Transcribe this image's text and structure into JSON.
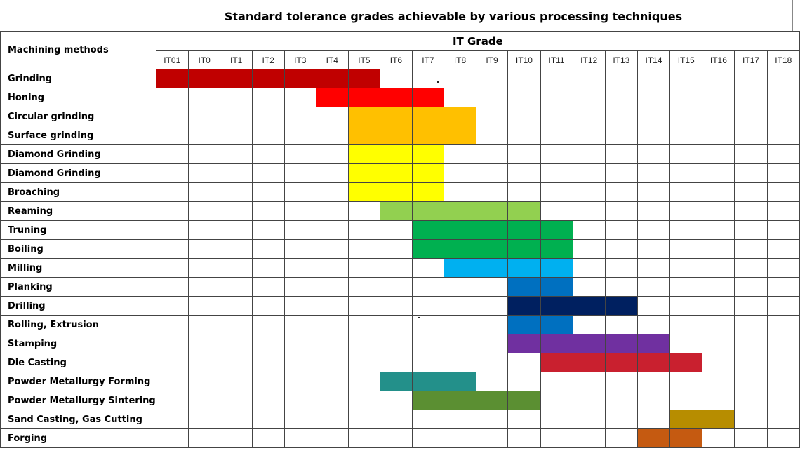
{
  "title": "Standard tolerance grades achievable by various processing techniques",
  "header": {
    "row_label": "Machining methods",
    "group_label": "IT  Grade",
    "grades": [
      "IT01",
      "IT0",
      "IT1",
      "IT2",
      "IT3",
      "IT4",
      "IT5",
      "IT6",
      "IT7",
      "IT8",
      "IT9",
      "IT10",
      "IT11",
      "IT12",
      "IT13",
      "IT14",
      "IT15",
      "IT16",
      "IT17",
      "IT18"
    ]
  },
  "rows": [
    {
      "label": "Grinding",
      "start": 0,
      "end": 6,
      "color": "#C00000"
    },
    {
      "label": "Honing",
      "start": 5,
      "end": 8,
      "color": "#FF0000"
    },
    {
      "label": "Circular grinding",
      "start": 6,
      "end": 9,
      "color": "#FFC000"
    },
    {
      "label": "Surface grinding",
      "start": 6,
      "end": 9,
      "color": "#FFC000"
    },
    {
      "label": "Diamond Grinding",
      "start": 6,
      "end": 8,
      "color": "#FFFF00"
    },
    {
      "label": "Diamond Grinding",
      "start": 6,
      "end": 8,
      "color": "#FFFF00"
    },
    {
      "label": "Broaching",
      "start": 6,
      "end": 8,
      "color": "#FFFF00"
    },
    {
      "label": "Reaming",
      "start": 7,
      "end": 11,
      "color": "#92D050"
    },
    {
      "label": "Truning",
      "start": 8,
      "end": 12,
      "color": "#00B050"
    },
    {
      "label": "Boiling",
      "start": 8,
      "end": 12,
      "color": "#00B050"
    },
    {
      "label": "Milling",
      "start": 9,
      "end": 12,
      "color": "#00B0F0"
    },
    {
      "label": "Planking",
      "start": 11,
      "end": 12,
      "color": "#0070C0"
    },
    {
      "label": "Drilling",
      "start": 11,
      "end": 14,
      "color": "#002060"
    },
    {
      "label": "Rolling, Extrusion",
      "start": 11,
      "end": 12,
      "color": "#0070C0"
    },
    {
      "label": "Stamping",
      "start": 11,
      "end": 15,
      "color": "#7030A0"
    },
    {
      "label": "Die Casting",
      "start": 12,
      "end": 16,
      "color": "#C9202F"
    },
    {
      "label": "Powder Metallurgy Forming",
      "start": 7,
      "end": 9,
      "color": "#23908A"
    },
    {
      "label": "Powder Metallurgy Sintering",
      "start": 8,
      "end": 11,
      "color": "#5B8F32"
    },
    {
      "label": "Sand Casting, Gas Cutting",
      "start": 16,
      "end": 17,
      "color": "#B78D00"
    },
    {
      "label": "Forging",
      "start": 15,
      "end": 16,
      "color": "#C55A11"
    }
  ],
  "chart_data": {
    "type": "table",
    "title": "Standard tolerance grades achievable by various processing techniques",
    "xlabel": "IT  Grade",
    "ylabel": "Machining methods",
    "categories": [
      "IT01",
      "IT0",
      "IT1",
      "IT2",
      "IT3",
      "IT4",
      "IT5",
      "IT6",
      "IT7",
      "IT8",
      "IT9",
      "IT10",
      "IT11",
      "IT12",
      "IT13",
      "IT14",
      "IT15",
      "IT16",
      "IT17",
      "IT18"
    ],
    "series": [
      {
        "name": "Grinding",
        "range": [
          "IT01",
          "IT5"
        ]
      },
      {
        "name": "Honing",
        "range": [
          "IT4",
          "IT7"
        ]
      },
      {
        "name": "Circular grinding",
        "range": [
          "IT5",
          "IT8"
        ]
      },
      {
        "name": "Surface grinding",
        "range": [
          "IT5",
          "IT8"
        ]
      },
      {
        "name": "Diamond Grinding",
        "range": [
          "IT5",
          "IT7"
        ]
      },
      {
        "name": "Diamond Grinding",
        "range": [
          "IT5",
          "IT7"
        ]
      },
      {
        "name": "Broaching",
        "range": [
          "IT5",
          "IT7"
        ]
      },
      {
        "name": "Reaming",
        "range": [
          "IT6",
          "IT10"
        ]
      },
      {
        "name": "Truning",
        "range": [
          "IT7",
          "IT11"
        ]
      },
      {
        "name": "Boiling",
        "range": [
          "IT7",
          "IT11"
        ]
      },
      {
        "name": "Milling",
        "range": [
          "IT8",
          "IT11"
        ]
      },
      {
        "name": "Planking",
        "range": [
          "IT10",
          "IT11"
        ]
      },
      {
        "name": "Drilling",
        "range": [
          "IT10",
          "IT13"
        ]
      },
      {
        "name": "Rolling, Extrusion",
        "range": [
          "IT10",
          "IT11"
        ]
      },
      {
        "name": "Stamping",
        "range": [
          "IT10",
          "IT14"
        ]
      },
      {
        "name": "Die Casting",
        "range": [
          "IT11",
          "IT15"
        ]
      },
      {
        "name": "Powder Metallurgy Forming",
        "range": [
          "IT6",
          "IT8"
        ]
      },
      {
        "name": "Powder Metallurgy Sintering",
        "range": [
          "IT7",
          "IT10"
        ]
      },
      {
        "name": "Sand Casting, Gas Cutting",
        "range": [
          "IT15",
          "IT16"
        ]
      },
      {
        "name": "Forging",
        "range": [
          "IT14",
          "IT15"
        ]
      }
    ]
  }
}
